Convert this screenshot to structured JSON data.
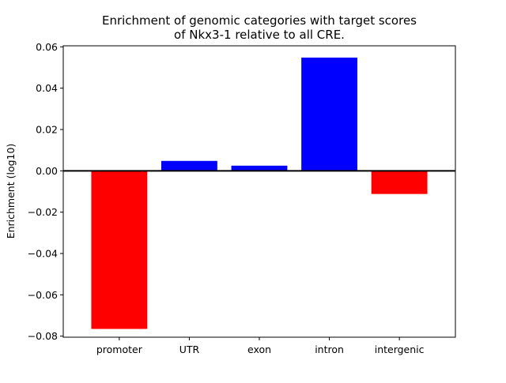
{
  "chart_data": {
    "type": "bar",
    "title": "Enrichment of genomic categories with target scores\nof Nkx3-1 relative to all CRE.",
    "xlabel": "",
    "ylabel": "Enrichment (log10)",
    "categories": [
      "promoter",
      "UTR",
      "exon",
      "intron",
      "intergenic"
    ],
    "values": [
      -0.0765,
      0.0048,
      0.0025,
      0.0548,
      -0.0112
    ],
    "ylim": [
      -0.0805,
      0.0605
    ],
    "yticks": [
      -0.08,
      -0.06,
      -0.04,
      -0.02,
      0.0,
      0.02,
      0.04,
      0.06
    ],
    "ytick_labels": [
      "−0.08",
      "−0.06",
      "−0.04",
      "−0.02",
      "0.00",
      "0.02",
      "0.04",
      "0.06"
    ],
    "colors": {
      "positive": "#0000ff",
      "negative": "#ff0000",
      "baseline": "#000000"
    },
    "grid": false,
    "legend": "none"
  }
}
